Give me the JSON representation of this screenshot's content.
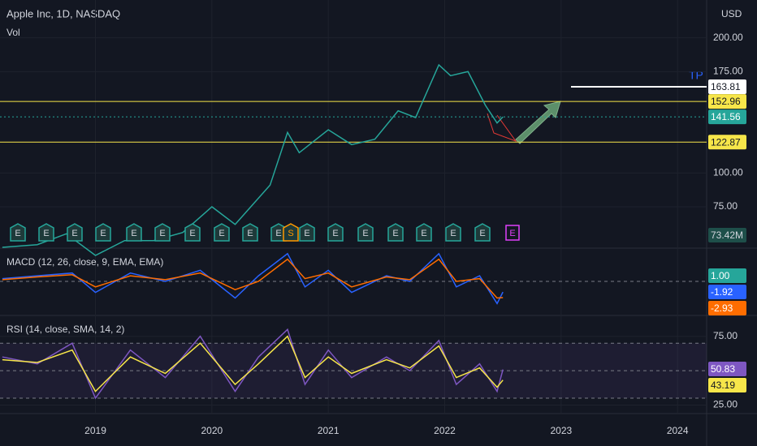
{
  "header": {
    "title": "Apple Inc, 1D, NASDAQ",
    "volume_label": "Vol",
    "currency": "USD",
    "volume_value": "73.42M",
    "annotation": "TP",
    "markers": [
      "E",
      "E",
      "E",
      "E",
      "E",
      "E",
      "E",
      "E",
      "E",
      "E",
      "S",
      "E",
      "E",
      "E",
      "E",
      "E",
      "E",
      "E",
      "E"
    ]
  },
  "chart_data": [
    {
      "type": "line",
      "xlim": [
        2018.18,
        2024.25
      ],
      "xticks": [
        2019,
        2020,
        2021,
        2022,
        2023,
        2024
      ],
      "ylim": [
        45,
        228
      ],
      "yticks": [
        {
          "value": 75,
          "label": "75.00"
        },
        {
          "value": 100,
          "label": "100.00"
        },
        {
          "value": 175,
          "label": "175.00"
        },
        {
          "value": 200,
          "label": "200.00"
        }
      ],
      "x": [
        2018.2,
        2018.5,
        2018.75,
        2019.0,
        2019.25,
        2019.5,
        2019.75,
        2020.0,
        2020.2,
        2020.5,
        2020.65,
        2020.75,
        2021.0,
        2021.2,
        2021.4,
        2021.6,
        2021.75,
        2021.95,
        2022.05,
        2022.2,
        2022.35,
        2022.45,
        2022.5
      ],
      "series": [
        {
          "color": "#26a69a",
          "values": [
            45,
            47,
            55,
            39,
            50,
            50,
            56,
            75,
            62,
            91,
            130,
            115,
            132,
            121,
            125,
            146,
            141,
            180,
            172,
            175,
            150,
            137,
            141.56
          ]
        }
      ],
      "price_lines": [
        {
          "value": 163.81,
          "color": "#ffffff"
        },
        {
          "value": 152.96,
          "color": "#f7e64a"
        },
        {
          "value": 141.56,
          "color": "#26a69a"
        },
        {
          "value": 122.87,
          "color": "#f7e64a"
        }
      ]
    },
    {
      "type": "line",
      "title": "MACD (12, 26, close, 9, EMA, EMA)",
      "xlim": [
        2018.18,
        2024.25
      ],
      "ylim": [
        -6,
        5.7
      ],
      "x": [
        2018.2,
        2018.5,
        2018.8,
        2019.0,
        2019.3,
        2019.6,
        2019.9,
        2020.2,
        2020.4,
        2020.65,
        2020.8,
        2021.0,
        2021.2,
        2021.5,
        2021.7,
        2021.95,
        2022.1,
        2022.3,
        2022.45,
        2022.5
      ],
      "series": [
        {
          "color": "#2962ff",
          "values": [
            0.5,
            1,
            1.5,
            -2,
            1.5,
            0,
            2,
            -3,
            1,
            5,
            -1,
            2,
            -2,
            1,
            0,
            5,
            -1,
            1,
            -4,
            -1.92
          ]
        },
        {
          "color": "#ff6d00",
          "values": [
            0.3,
            0.8,
            1.2,
            -1,
            1,
            0.3,
            1.5,
            -1.5,
            0,
            4,
            0.5,
            1.5,
            -1,
            0.8,
            0.3,
            4,
            0,
            0.5,
            -3,
            -2.93
          ]
        }
      ],
      "levels": [
        {
          "value": 1,
          "label": "1.00",
          "color": "#26a69a"
        },
        {
          "value": -1.92,
          "color": "#2962ff"
        },
        {
          "value": -2.93,
          "color": "#ff6d00"
        }
      ]
    },
    {
      "type": "line",
      "title": "RSI (14, close, SMA, 14, 2)",
      "xlim": [
        2018.18,
        2024.25
      ],
      "ylim": [
        20,
        89
      ],
      "yticks": [
        {
          "value": 75,
          "label": "75.00"
        },
        {
          "value": 25,
          "label": "25.00"
        }
      ],
      "bands": [
        70,
        50,
        30
      ],
      "x": [
        2018.2,
        2018.5,
        2018.8,
        2019.0,
        2019.3,
        2019.6,
        2019.9,
        2020.2,
        2020.4,
        2020.65,
        2020.8,
        2021.0,
        2021.2,
        2021.5,
        2021.7,
        2021.95,
        2022.1,
        2022.3,
        2022.45,
        2022.5
      ],
      "series": [
        {
          "color": "#7e57c2",
          "values": [
            60,
            55,
            70,
            30,
            65,
            45,
            75,
            35,
            60,
            80,
            40,
            65,
            45,
            60,
            50,
            72,
            40,
            55,
            35,
            50.83
          ]
        },
        {
          "color": "#f7e64a",
          "values": [
            58,
            56,
            65,
            35,
            60,
            48,
            70,
            40,
            55,
            75,
            45,
            60,
            48,
            58,
            52,
            68,
            45,
            52,
            38,
            43.19
          ]
        }
      ]
    }
  ]
}
